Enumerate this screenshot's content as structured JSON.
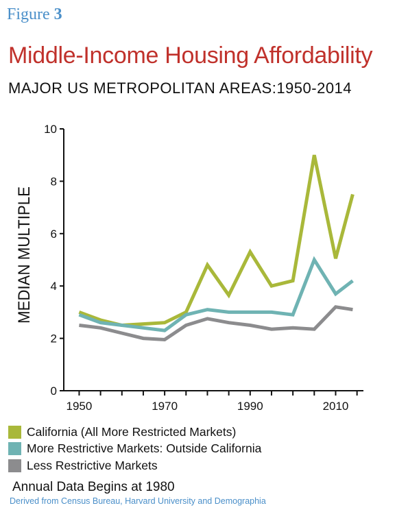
{
  "figure": {
    "label": "Figure",
    "number": "3"
  },
  "chart_data": {
    "type": "line",
    "title": "Middle-Income Housing Affordability",
    "subtitle": "MAJOR US METROPOLITAN AREAS:1950-2014",
    "xlabel": "",
    "ylabel": "MEDIAN MULTIPLE",
    "xlim": [
      1946.4,
      2016.5
    ],
    "ylim": [
      0,
      10
    ],
    "xticks": [
      1950,
      1970,
      1990,
      2010
    ],
    "yticks": [
      0,
      2,
      4,
      6,
      8,
      10
    ],
    "grid": false,
    "legend_position": "bottom",
    "x": [
      1950,
      1955,
      1960,
      1965,
      1970,
      1975,
      1980,
      1985,
      1990,
      1995,
      2000,
      2005,
      2010,
      2014
    ],
    "series": [
      {
        "name": "California (All More Restricted Markets)",
        "color": "#a9b83a",
        "values": [
          3.0,
          2.7,
          2.5,
          2.55,
          2.6,
          3.0,
          4.8,
          3.65,
          5.3,
          4.0,
          4.2,
          9.0,
          5.05,
          7.5
        ]
      },
      {
        "name": "More Restrictive Markets: Outside California",
        "color": "#6fb3b3",
        "values": [
          2.9,
          2.6,
          2.5,
          2.4,
          2.3,
          2.9,
          3.1,
          3.0,
          3.0,
          3.0,
          2.9,
          5.0,
          3.7,
          4.2
        ]
      },
      {
        "name": "Less Restrictive Markets",
        "color": "#8c8c8e",
        "values": [
          2.5,
          2.4,
          2.2,
          2.0,
          1.95,
          2.5,
          2.75,
          2.6,
          2.5,
          2.35,
          2.4,
          2.35,
          3.2,
          3.1
        ]
      }
    ]
  },
  "note": "Annual Data Begins at 1980",
  "source": "Derived from Census Bureau, Harvard University and Demographia"
}
